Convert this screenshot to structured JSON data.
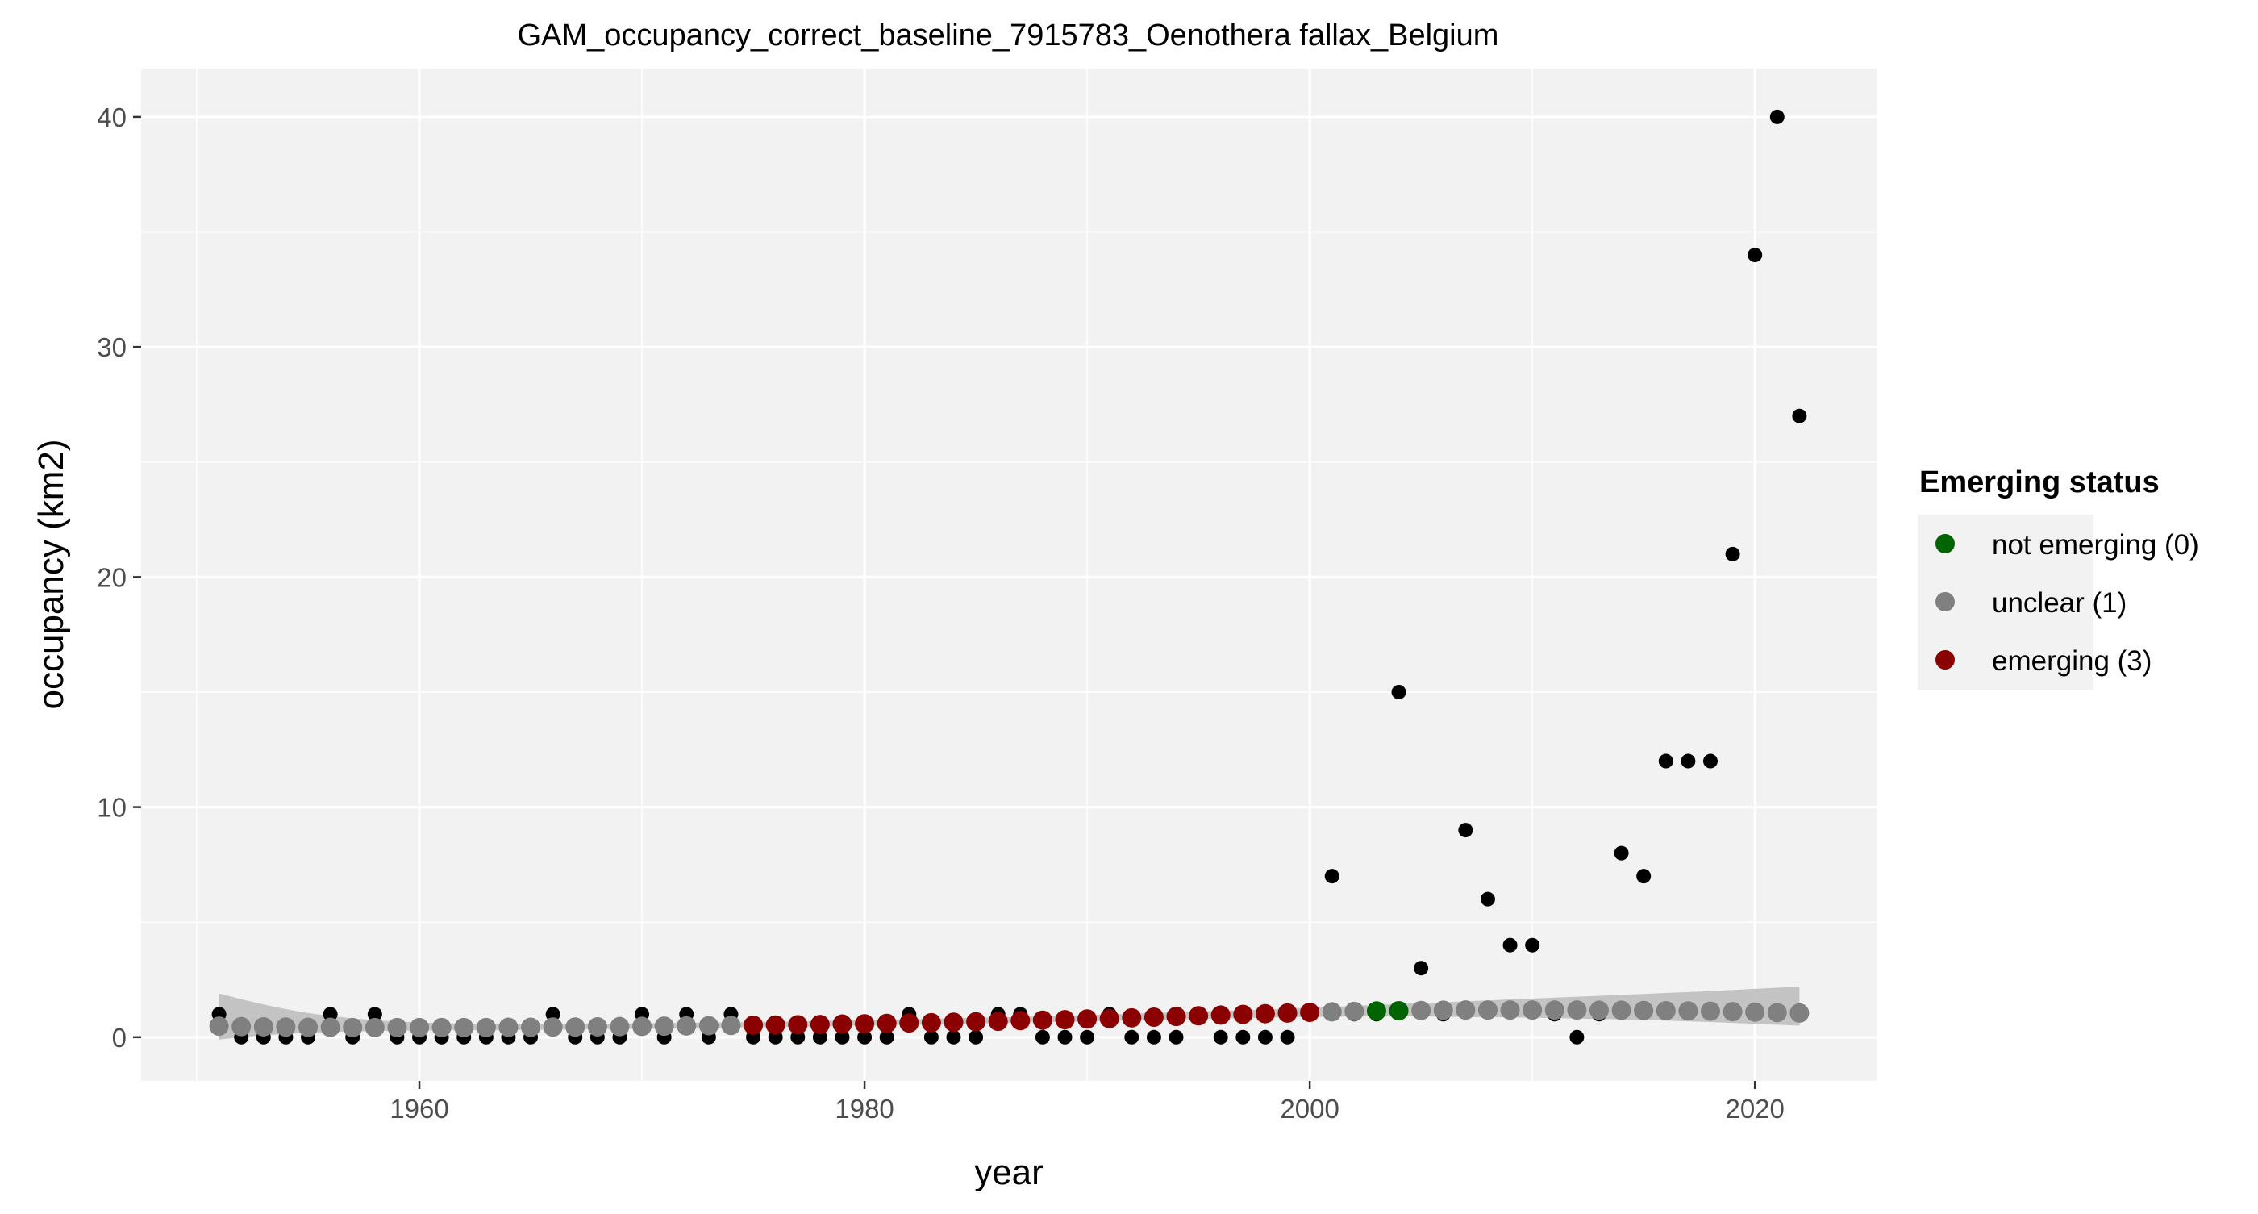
{
  "chart_data": {
    "type": "scatter",
    "title": "GAM_occupancy_correct_baseline_7915783_Oenothera fallax_Belgium",
    "xlabel": "year",
    "ylabel": "occupancy (km2)",
    "xlim": [
      1947.5,
      2025.5
    ],
    "ylim": [
      -1.9,
      42.1
    ],
    "x_ticks": [
      1960,
      1980,
      2000,
      2020
    ],
    "x_tick_labels": [
      "1960",
      "1980",
      "2000",
      "2020"
    ],
    "y_ticks": [
      0,
      10,
      20,
      30,
      40
    ],
    "y_tick_labels": [
      "0",
      "10",
      "20",
      "30",
      "40"
    ],
    "grid": true,
    "legend": {
      "title": "Emerging status",
      "position": "right",
      "items": [
        {
          "label": "not emerging (0)",
          "color": "#006400"
        },
        {
          "label": "unclear (1)",
          "color": "#808080"
        },
        {
          "label": "emerging (3)",
          "color": "#8B0000"
        }
      ]
    },
    "colors": {
      "observed": "#000000",
      "ribbon": "#bebebe",
      "panel_bg": "#f2f2f2",
      "grid": "#ffffff",
      "status_0": "#006400",
      "status_1": "#808080",
      "status_3": "#8B0000"
    },
    "observed": {
      "name": "observed",
      "x": [
        1951,
        1952,
        1953,
        1954,
        1955,
        1956,
        1957,
        1958,
        1959,
        1960,
        1961,
        1962,
        1963,
        1964,
        1965,
        1966,
        1967,
        1968,
        1969,
        1970,
        1971,
        1972,
        1973,
        1974,
        1975,
        1976,
        1977,
        1978,
        1979,
        1980,
        1981,
        1982,
        1983,
        1984,
        1985,
        1986,
        1987,
        1988,
        1989,
        1990,
        1991,
        1992,
        1993,
        1994,
        1995,
        1996,
        1997,
        1998,
        1999,
        2000,
        2001,
        2002,
        2003,
        2004,
        2005,
        2006,
        2007,
        2008,
        2009,
        2010,
        2011,
        2012,
        2013,
        2014,
        2015,
        2016,
        2017,
        2018,
        2019,
        2020,
        2021,
        2022
      ],
      "y": [
        1,
        0,
        0,
        0,
        0,
        1,
        0,
        1,
        0,
        0,
        0,
        0,
        0,
        0,
        0,
        1,
        0,
        0,
        0,
        1,
        0,
        1,
        0,
        1,
        0,
        0,
        0,
        0,
        0,
        0,
        0,
        1,
        0,
        0,
        0,
        1,
        1,
        0,
        0,
        0,
        1,
        0,
        0,
        0,
        1,
        0,
        0,
        0,
        0,
        1,
        7,
        1,
        1,
        15,
        3,
        1,
        9,
        6,
        4,
        4,
        1,
        0,
        1,
        8,
        7,
        12,
        12,
        12,
        21,
        34,
        40,
        27
      ]
    },
    "gam_fit": {
      "x": [
        1951,
        1952,
        1953,
        1954,
        1955,
        1956,
        1957,
        1958,
        1959,
        1960,
        1961,
        1962,
        1963,
        1964,
        1965,
        1966,
        1967,
        1968,
        1969,
        1970,
        1971,
        1972,
        1973,
        1974,
        1975,
        1976,
        1977,
        1978,
        1979,
        1980,
        1981,
        1982,
        1983,
        1984,
        1985,
        1986,
        1987,
        1988,
        1989,
        1990,
        1991,
        1992,
        1993,
        1994,
        1995,
        1996,
        1997,
        1998,
        1999,
        2000,
        2001,
        2002,
        2003,
        2004,
        2005,
        2006,
        2007,
        2008,
        2009,
        2010,
        2011,
        2012,
        2013,
        2014,
        2015,
        2016,
        2017,
        2018,
        2019,
        2020,
        2021,
        2022
      ],
      "y": [
        0.48,
        0.46,
        0.45,
        0.44,
        0.43,
        0.43,
        0.42,
        0.42,
        0.42,
        0.42,
        0.42,
        0.42,
        0.42,
        0.43,
        0.43,
        0.44,
        0.44,
        0.45,
        0.46,
        0.47,
        0.48,
        0.49,
        0.5,
        0.51,
        0.52,
        0.53,
        0.54,
        0.55,
        0.57,
        0.58,
        0.6,
        0.62,
        0.63,
        0.65,
        0.67,
        0.69,
        0.72,
        0.74,
        0.76,
        0.79,
        0.81,
        0.84,
        0.87,
        0.9,
        0.93,
        0.96,
        0.99,
        1.02,
        1.05,
        1.08,
        1.1,
        1.12,
        1.14,
        1.15,
        1.16,
        1.17,
        1.18,
        1.18,
        1.18,
        1.18,
        1.18,
        1.18,
        1.17,
        1.17,
        1.16,
        1.15,
        1.14,
        1.13,
        1.11,
        1.09,
        1.07,
        1.05
      ],
      "lower": [
        -0.1,
        0.0,
        0.08,
        0.14,
        0.19,
        0.23,
        0.25,
        0.27,
        0.28,
        0.29,
        0.3,
        0.31,
        0.31,
        0.32,
        0.32,
        0.33,
        0.34,
        0.35,
        0.36,
        0.37,
        0.38,
        0.39,
        0.4,
        0.42,
        0.43,
        0.44,
        0.46,
        0.47,
        0.49,
        0.5,
        0.52,
        0.54,
        0.55,
        0.57,
        0.59,
        0.61,
        0.63,
        0.65,
        0.67,
        0.69,
        0.71,
        0.73,
        0.75,
        0.77,
        0.79,
        0.81,
        0.83,
        0.85,
        0.87,
        0.88,
        0.89,
        0.9,
        0.9,
        0.9,
        0.9,
        0.89,
        0.88,
        0.87,
        0.86,
        0.85,
        0.83,
        0.81,
        0.79,
        0.77,
        0.75,
        0.72,
        0.69,
        0.66,
        0.62,
        0.58,
        0.54,
        0.5
      ],
      "upper": [
        1.9,
        1.65,
        1.42,
        1.22,
        1.05,
        0.92,
        0.82,
        0.74,
        0.68,
        0.64,
        0.61,
        0.59,
        0.58,
        0.57,
        0.57,
        0.57,
        0.57,
        0.58,
        0.59,
        0.6,
        0.61,
        0.62,
        0.63,
        0.64,
        0.66,
        0.67,
        0.69,
        0.7,
        0.72,
        0.74,
        0.76,
        0.78,
        0.8,
        0.82,
        0.84,
        0.86,
        0.88,
        0.91,
        0.93,
        0.96,
        0.99,
        1.02,
        1.05,
        1.08,
        1.11,
        1.14,
        1.17,
        1.2,
        1.24,
        1.28,
        1.32,
        1.36,
        1.4,
        1.44,
        1.48,
        1.52,
        1.56,
        1.6,
        1.64,
        1.68,
        1.72,
        1.76,
        1.8,
        1.84,
        1.88,
        1.92,
        1.96,
        2.0,
        2.05,
        2.1,
        2.15,
        2.2
      ],
      "status": [
        1,
        1,
        1,
        1,
        1,
        1,
        1,
        1,
        1,
        1,
        1,
        1,
        1,
        1,
        1,
        1,
        1,
        1,
        1,
        1,
        1,
        1,
        1,
        1,
        3,
        3,
        3,
        3,
        3,
        3,
        3,
        3,
        3,
        3,
        3,
        3,
        3,
        3,
        3,
        3,
        3,
        3,
        3,
        3,
        3,
        3,
        3,
        3,
        3,
        3,
        1,
        1,
        0,
        0,
        1,
        1,
        1,
        1,
        1,
        1,
        1,
        1,
        1,
        1,
        1,
        1,
        1,
        1,
        1,
        1,
        1,
        1
      ]
    }
  }
}
